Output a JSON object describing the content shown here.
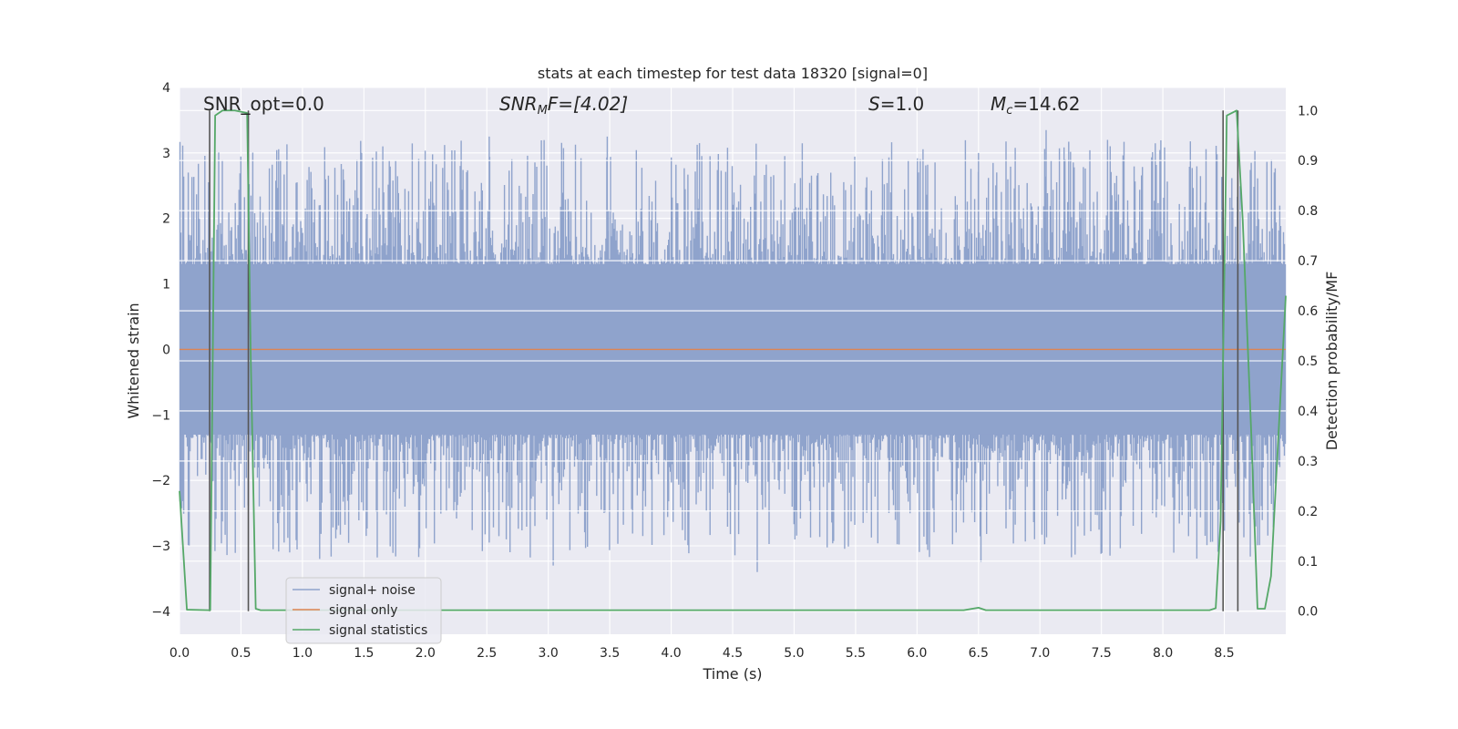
{
  "chart_data": {
    "type": "line",
    "title": "stats at each timestep for test data 18320 [signal=0]",
    "xlabel": "Time (s)",
    "ylabel_left": "Whitened strain",
    "ylabel_right": "Detection probability/MF",
    "xlim": [
      0.0,
      9.0
    ],
    "ylim_left": [
      -4.35,
      4.0
    ],
    "ylim_right": [
      -0.046,
      1.046
    ],
    "x_ticks": [
      "0.0",
      "0.5",
      "1.0",
      "1.5",
      "2.0",
      "2.5",
      "3.0",
      "3.5",
      "4.0",
      "4.5",
      "5.0",
      "5.5",
      "6.0",
      "6.5",
      "7.0",
      "7.5",
      "8.0",
      "8.5"
    ],
    "y_ticks_left": [
      "−4",
      "−3",
      "−2",
      "−1",
      "0",
      "1",
      "2",
      "3",
      "4"
    ],
    "y_ticks_right": [
      "0.0",
      "0.1",
      "0.2",
      "0.3",
      "0.4",
      "0.5",
      "0.6",
      "0.7",
      "0.8",
      "0.9",
      "1.0"
    ],
    "grid": true,
    "legend_position": "lower-left",
    "annotations": {
      "snr_opt": "SNR_opt=0.0",
      "snr_mf_sym": "SNR",
      "snr_mf_sub": "M",
      "snr_mf_rest": "F=[4.02]",
      "s_sym": "S",
      "s_rest": "=1.0",
      "mc_sym": "M",
      "mc_sub": "c",
      "mc_rest": "=14.62"
    },
    "series": [
      {
        "name": "signal+ noise",
        "color": "#8fa3cc",
        "style": "noise_envelope",
        "typical_amplitude": 1.3,
        "peak_range": [
          -3.4,
          3.25
        ],
        "peaks": [
          {
            "x": 2.52,
            "y": 3.25
          },
          {
            "x": 3.48,
            "y": 3.25
          },
          {
            "x": 4.23,
            "y": 3.15
          },
          {
            "x": 7.05,
            "y": 3.35
          },
          {
            "x": 7.55,
            "y": 3.2
          },
          {
            "x": 6.5,
            "y": 3.0
          },
          {
            "x": 4.7,
            "y": -3.4
          },
          {
            "x": 7.57,
            "y": -3.15
          },
          {
            "x": 3.04,
            "y": -3.3
          },
          {
            "x": 1.14,
            "y": -3.2
          },
          {
            "x": 6.52,
            "y": -3.25
          },
          {
            "x": 2.52,
            "y": -2.95
          }
        ]
      },
      {
        "name": "signal only",
        "color": "#dd8452",
        "x": [
          0.0,
          9.0
        ],
        "y": [
          0.0,
          0.0
        ]
      },
      {
        "name": "signal statistics",
        "color": "#55a868",
        "axis": "right",
        "x": [
          0.0,
          0.06,
          0.24,
          0.25,
          0.29,
          0.35,
          0.45,
          0.55,
          0.58,
          0.62,
          0.66,
          1.0,
          6.38,
          6.5,
          6.56,
          8.38,
          8.43,
          8.47,
          8.52,
          8.6,
          8.65,
          8.72,
          8.77,
          8.83,
          8.88,
          9.0
        ],
        "y": [
          0.24,
          0.003,
          0.002,
          0.002,
          0.99,
          1.0,
          1.0,
          0.995,
          0.5,
          0.005,
          0.002,
          0.002,
          0.002,
          0.007,
          0.002,
          0.002,
          0.006,
          0.18,
          0.99,
          1.0,
          0.78,
          0.35,
          0.005,
          0.005,
          0.07,
          0.63
        ]
      }
    ],
    "vertical_markers": {
      "color": "#555555",
      "lines": [
        {
          "x": 0.245,
          "y0": 0.0,
          "y1": 1.0
        },
        {
          "x": 0.56,
          "y0": 0.0,
          "y1": 1.0
        },
        {
          "x": 8.49,
          "y0": 0.0,
          "y1": 1.0
        },
        {
          "x": 8.61,
          "y0": 0.0,
          "y1": 1.0
        }
      ]
    }
  }
}
